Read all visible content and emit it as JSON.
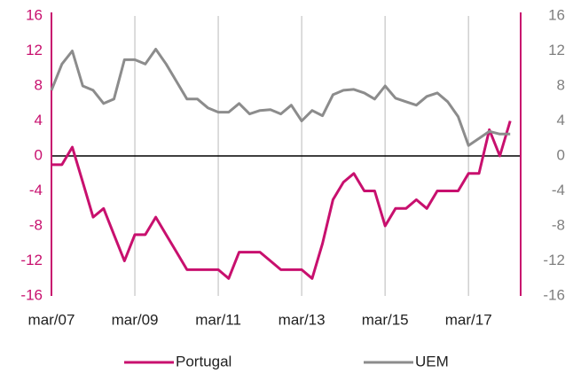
{
  "chart_data": {
    "type": "line",
    "categories": [
      "mar/07",
      null,
      null,
      null,
      null,
      null,
      null,
      null,
      "mar/09",
      null,
      null,
      null,
      null,
      null,
      null,
      null,
      "mar/11",
      null,
      null,
      null,
      null,
      null,
      null,
      null,
      "mar/13",
      null,
      null,
      null,
      null,
      null,
      null,
      null,
      "mar/15",
      null,
      null,
      null,
      null,
      null,
      null,
      null,
      "mar/17",
      null,
      null,
      null,
      null
    ],
    "series": [
      {
        "name": "Portugal",
        "color": "#c8106e",
        "values": [
          -1,
          -1,
          1,
          -3,
          -7,
          -6,
          -9,
          -12,
          -9,
          -9,
          -7,
          -9,
          -11,
          -13,
          -13,
          -13,
          -13,
          -14,
          -11,
          -11,
          -11,
          -12,
          -13,
          -13,
          -13,
          -14,
          -10,
          -5,
          -3,
          -2,
          -4,
          -4,
          -8,
          -6,
          -6,
          -5,
          -6,
          -4,
          -4,
          -4,
          -2,
          -2,
          3,
          0,
          4
        ]
      },
      {
        "name": "UEM",
        "color": "#8c8c8c",
        "axis": "y2",
        "values": [
          7.5,
          10.5,
          12,
          8,
          7.5,
          6,
          6.5,
          11,
          11,
          10.5,
          12.2,
          10.5,
          8.5,
          6.5,
          6.5,
          5.5,
          5,
          5,
          6,
          4.8,
          5.2,
          5.3,
          4.8,
          5.8,
          4,
          5.2,
          4.6,
          7,
          7.5,
          7.6,
          7.2,
          6.5,
          8,
          6.6,
          6.2,
          5.8,
          6.8,
          7.2,
          6.2,
          4.5,
          1.2,
          2,
          2.8,
          2.5,
          2.5
        ]
      }
    ],
    "ylim": [
      -16,
      16
    ],
    "yticks": [
      -16,
      -12,
      -8,
      -4,
      0,
      4,
      8,
      12,
      16
    ],
    "y2lim": [
      -16,
      16
    ],
    "y2ticks": [
      -16,
      -12,
      -8,
      -4,
      0,
      4,
      8,
      12,
      16
    ],
    "axis_color": "#c8106e",
    "y2_label_color": "#7f7f7f",
    "grid": "x",
    "legend": "bottom"
  }
}
